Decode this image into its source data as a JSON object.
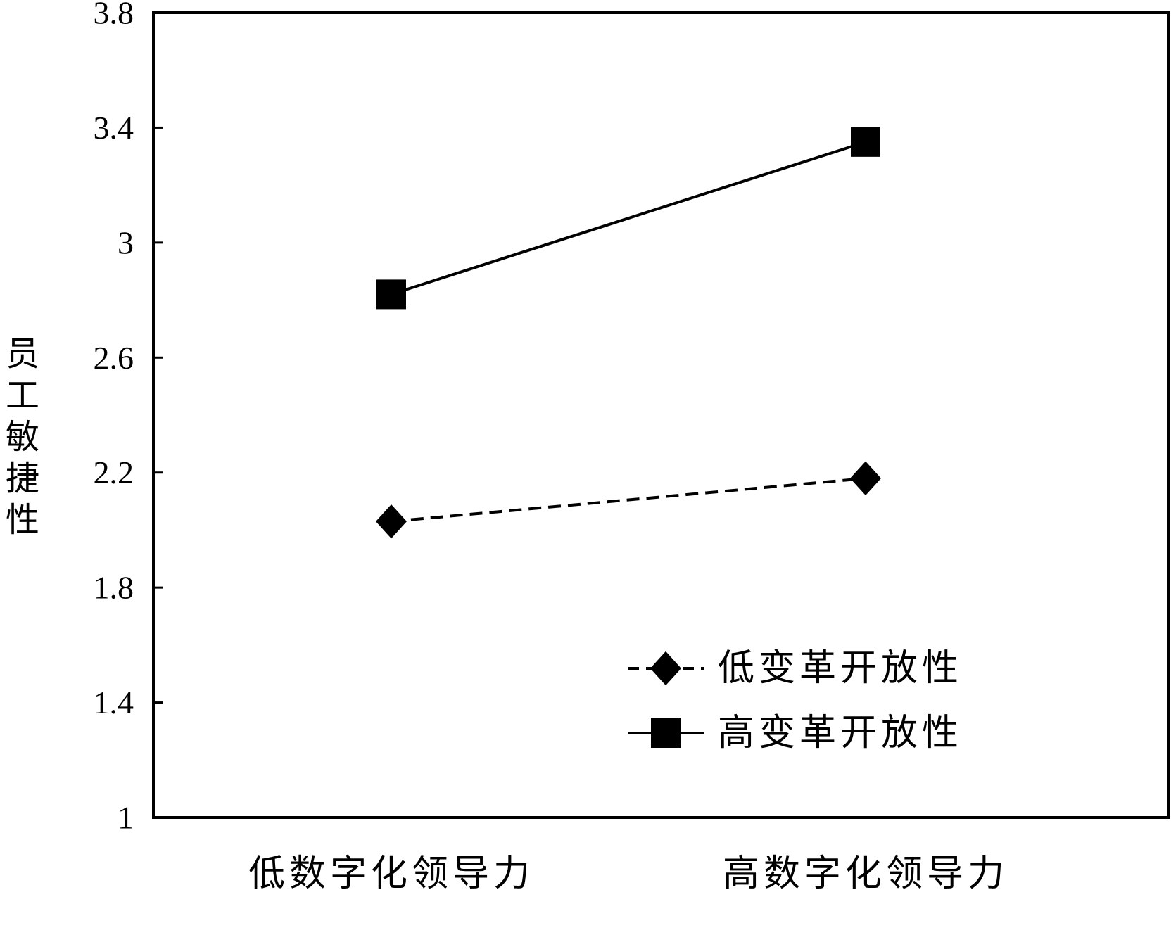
{
  "chart_data": {
    "type": "line",
    "categories": [
      "低数字化领导力",
      "高数字化领导力"
    ],
    "series": [
      {
        "name": "低变革开放性",
        "values": [
          2.03,
          2.18
        ],
        "marker": "diamond",
        "line_style": "dashed"
      },
      {
        "name": "高变革开放性",
        "values": [
          2.82,
          3.35
        ],
        "marker": "square",
        "line_style": "solid"
      }
    ],
    "ylabel": "员工敏捷性",
    "ylim": [
      1,
      3.8
    ],
    "yticks": [
      "1",
      "1.4",
      "1.8",
      "2.2",
      "2.6",
      "3",
      "3.4",
      "3.8"
    ],
    "grid": false,
    "legend_position": "bottom-right",
    "colors": {
      "line": "#000000",
      "marker": "#000000"
    }
  }
}
